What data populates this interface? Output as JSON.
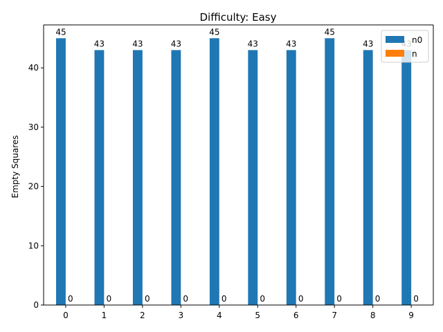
{
  "chart_data": {
    "type": "bar",
    "title": "Difficulty: Easy",
    "xlabel": "",
    "ylabel": "Empty Squares",
    "categories": [
      "0",
      "1",
      "2",
      "3",
      "4",
      "5",
      "6",
      "7",
      "8",
      "9"
    ],
    "series": [
      {
        "name": "n0",
        "color": "#1f77b4",
        "values": [
          45,
          43,
          43,
          43,
          45,
          43,
          43,
          45,
          43,
          43
        ]
      },
      {
        "name": "n",
        "color": "#ff7f0e",
        "values": [
          0,
          0,
          0,
          0,
          0,
          0,
          0,
          0,
          0,
          0
        ]
      }
    ],
    "ylim": [
      0,
      47.25
    ],
    "yticks": [
      0,
      10,
      20,
      30,
      40
    ],
    "legend_position": "top-right",
    "grid": false
  }
}
